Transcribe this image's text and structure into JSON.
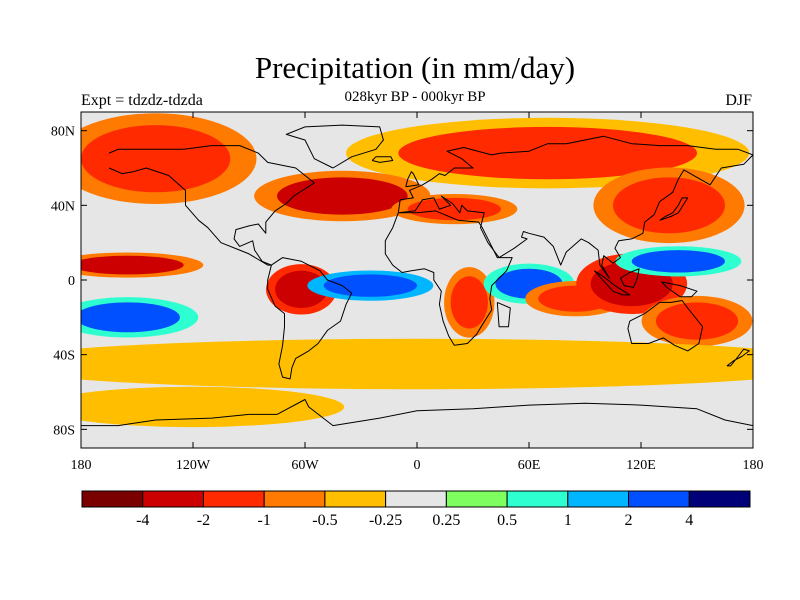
{
  "chart_data": {
    "type": "heatmap",
    "title": "Precipitation (in mm/day)",
    "subtitle": "028kyr BP - 000kyr BP",
    "left_label": "Expt = tdzdz-tdzda",
    "right_label": "DJF",
    "x_ticks": [
      "180",
      "120W",
      "60W",
      "0",
      "60E",
      "120E",
      "180"
    ],
    "x_tick_values": [
      -180,
      -120,
      -60,
      0,
      60,
      120,
      180
    ],
    "y_ticks": [
      "80N",
      "40N",
      "0",
      "40S",
      "80S"
    ],
    "y_tick_values": [
      80,
      40,
      0,
      -40,
      -80
    ],
    "xlim": [
      -180,
      180
    ],
    "ylim": [
      -90,
      90
    ],
    "colorbar": {
      "colors": [
        "#7a0000",
        "#cc0000",
        "#ff2a00",
        "#ff7a00",
        "#ffbf00",
        "#e6e6e6",
        "#7fff5f",
        "#2effd0",
        "#00b7ff",
        "#0050ff",
        "#000078"
      ],
      "labels": [
        "-4",
        "-2",
        "-1",
        "-0.5",
        "-0.25",
        "0.25",
        "0.5",
        "1",
        "2",
        "4"
      ],
      "boundaries": [
        -4,
        -2,
        -1,
        -0.5,
        -0.25,
        0.25,
        0.5,
        1,
        2,
        4
      ]
    },
    "anomaly_regions": [
      {
        "name": "north-atlantic-pacific-drying",
        "lon": -140,
        "lat": 65,
        "rlon": 40,
        "rlat": 18,
        "value": -1.5
      },
      {
        "name": "eurasia-north-drying",
        "lon": 70,
        "lat": 68,
        "rlon": 80,
        "rlat": 14,
        "value": -1.2
      },
      {
        "name": "north-atlantic-storm-track",
        "lon": -40,
        "lat": 45,
        "rlon": 35,
        "rlat": 10,
        "value": -2.5
      },
      {
        "name": "mediterranean-drying",
        "lon": 20,
        "lat": 38,
        "rlon": 25,
        "rlat": 6,
        "value": -1.5
      },
      {
        "name": "east-asia-drying",
        "lon": 135,
        "lat": 40,
        "rlon": 30,
        "rlat": 15,
        "value": -1.5
      },
      {
        "name": "central-pacific-itcz",
        "lon": -155,
        "lat": 8,
        "rlon": 30,
        "rlat": 5,
        "value": -2.5
      },
      {
        "name": "south-pacific-wetting",
        "lon": -155,
        "lat": -20,
        "rlon": 28,
        "rlat": 8,
        "value": 2.5
      },
      {
        "name": "south-america-drying",
        "lon": -62,
        "lat": -5,
        "rlon": 14,
        "rlat": 10,
        "value": -3.0
      },
      {
        "name": "atlantic-itcz-wetting",
        "lon": -25,
        "lat": -3,
        "rlon": 25,
        "rlat": 6,
        "value": 3.5
      },
      {
        "name": "africa-drying",
        "lon": 28,
        "lat": -12,
        "rlon": 10,
        "rlat": 14,
        "value": -2.0
      },
      {
        "name": "indian-ocean-wetting",
        "lon": 60,
        "lat": -2,
        "rlon": 18,
        "rlat": 8,
        "value": 2.0
      },
      {
        "name": "indian-ocean-drying",
        "lon": 85,
        "lat": -10,
        "rlon": 20,
        "rlat": 7,
        "value": -1.5
      },
      {
        "name": "maritime-continent-drying",
        "lon": 115,
        "lat": -2,
        "rlon": 22,
        "rlat": 12,
        "value": -3.0
      },
      {
        "name": "west-pacific-wetting",
        "lon": 140,
        "lat": 10,
        "rlon": 25,
        "rlat": 6,
        "value": 2.0
      },
      {
        "name": "south-pacific-convergence-drying",
        "lon": 150,
        "lat": -22,
        "rlon": 22,
        "rlat": 10,
        "value": -2.0
      },
      {
        "name": "southern-ocean-drying",
        "lon": 0,
        "lat": -45,
        "rlon": 170,
        "rlat": 10,
        "value": -0.4
      },
      {
        "name": "antarctic-margin-drying",
        "lon": -120,
        "lat": -68,
        "rlon": 60,
        "rlat": 8,
        "value": -0.4
      }
    ]
  }
}
